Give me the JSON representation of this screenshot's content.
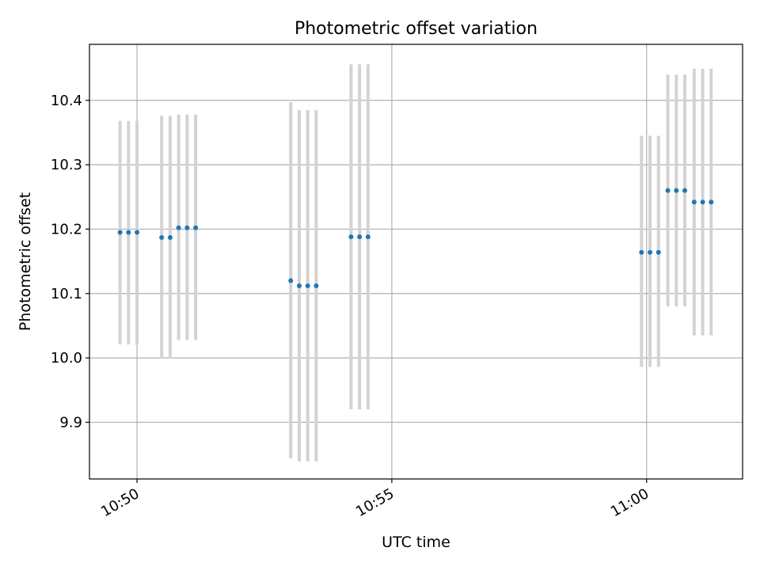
{
  "chart_data": {
    "type": "scatter",
    "title": "Photometric offset variation",
    "xlabel": "UTC time",
    "ylabel": "Photometric offset",
    "xlim": [
      "10:49:04",
      "11:01:53"
    ],
    "ylim": [
      9.812,
      10.487
    ],
    "x_ticks": [
      "10:50",
      "10:55",
      "11:00"
    ],
    "y_ticks": [
      9.9,
      10.0,
      10.1,
      10.2,
      10.3,
      10.4
    ],
    "grid": true,
    "marker_color": "#1f77b4",
    "errorbar_color": "#d3d3d3",
    "points": [
      {
        "t": "10:49:40",
        "y": 10.195,
        "low": 10.021,
        "high": 10.368
      },
      {
        "t": "10:49:50",
        "y": 10.195,
        "low": 10.021,
        "high": 10.368
      },
      {
        "t": "10:50:00",
        "y": 10.195,
        "low": 10.021,
        "high": 10.368
      },
      {
        "t": "10:50:29",
        "y": 10.187,
        "low": 9.999,
        "high": 10.376
      },
      {
        "t": "10:50:39",
        "y": 10.187,
        "low": 9.999,
        "high": 10.376
      },
      {
        "t": "10:50:49",
        "y": 10.202,
        "low": 10.028,
        "high": 10.378
      },
      {
        "t": "10:50:59",
        "y": 10.202,
        "low": 10.028,
        "high": 10.378
      },
      {
        "t": "10:51:09",
        "y": 10.202,
        "low": 10.028,
        "high": 10.378
      },
      {
        "t": "10:53:01",
        "y": 10.12,
        "low": 9.844,
        "high": 10.397
      },
      {
        "t": "10:53:11",
        "y": 10.112,
        "low": 9.839,
        "high": 10.385
      },
      {
        "t": "10:53:21",
        "y": 10.112,
        "low": 9.839,
        "high": 10.385
      },
      {
        "t": "10:53:31",
        "y": 10.112,
        "low": 9.839,
        "high": 10.385
      },
      {
        "t": "10:54:12",
        "y": 10.188,
        "low": 9.92,
        "high": 10.456
      },
      {
        "t": "10:54:22",
        "y": 10.188,
        "low": 9.92,
        "high": 10.456
      },
      {
        "t": "10:54:32",
        "y": 10.188,
        "low": 9.92,
        "high": 10.456
      },
      {
        "t": "10:59:54",
        "y": 10.164,
        "low": 9.986,
        "high": 10.345
      },
      {
        "t": "11:00:04",
        "y": 10.164,
        "low": 9.986,
        "high": 10.345
      },
      {
        "t": "11:00:14",
        "y": 10.164,
        "low": 9.986,
        "high": 10.345
      },
      {
        "t": "11:00:25",
        "y": 10.26,
        "low": 10.08,
        "high": 10.44
      },
      {
        "t": "11:00:35",
        "y": 10.26,
        "low": 10.08,
        "high": 10.44
      },
      {
        "t": "11:00:45",
        "y": 10.26,
        "low": 10.08,
        "high": 10.44
      },
      {
        "t": "11:00:56",
        "y": 10.242,
        "low": 10.035,
        "high": 10.449
      },
      {
        "t": "11:01:06",
        "y": 10.242,
        "low": 10.035,
        "high": 10.449
      },
      {
        "t": "11:01:16",
        "y": 10.242,
        "low": 10.035,
        "high": 10.449
      }
    ]
  }
}
